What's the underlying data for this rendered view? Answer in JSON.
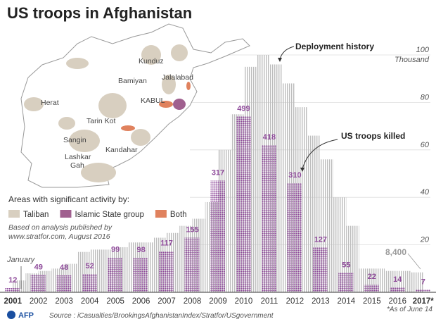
{
  "chart_data": {
    "type": "bar",
    "title": "US troops in Afghanistan",
    "categories": [
      "2001",
      "2002",
      "2003",
      "2004",
      "2005",
      "2006",
      "2007",
      "2008",
      "2009",
      "2010",
      "2011",
      "2012",
      "2013",
      "2014",
      "2015",
      "2016",
      "2017*"
    ],
    "series": [
      {
        "name": "US troops killed",
        "color": "#8e4a9a",
        "values": [
          12,
          49,
          48,
          52,
          99,
          98,
          117,
          155,
          317,
          499,
          418,
          310,
          127,
          55,
          22,
          14,
          7
        ]
      }
    ],
    "deployment": {
      "name": "Deployment history",
      "color": "#bdbdbd",
      "xlim": [
        2001,
        2018
      ],
      "x": [
        2001.5,
        2002,
        2002.5,
        2003,
        2003.5,
        2004,
        2004.5,
        2005,
        2005.5,
        2006,
        2006.5,
        2007,
        2007.5,
        2008,
        2008.5,
        2009,
        2009.5,
        2010,
        2010.5,
        2011,
        2011.5,
        2012,
        2012.5,
        2013,
        2013.5,
        2014,
        2014.5,
        2015,
        2015.5,
        2016,
        2016.5,
        2017
      ],
      "values": [
        5,
        8,
        9,
        10,
        12,
        17,
        18,
        18,
        19,
        21,
        21,
        23,
        25,
        28,
        31,
        38,
        60,
        75,
        95,
        100,
        96,
        88,
        78,
        66,
        56,
        40,
        28,
        10,
        10,
        9,
        9,
        8.4
      ]
    },
    "y2lim": [
      0,
      100
    ],
    "y2ticks": [
      20,
      40,
      60,
      80,
      100
    ],
    "y2_unit": "Thousand",
    "grid": true,
    "annotations": {
      "first": "January",
      "last": "8,400",
      "footnote": "*As of June 14"
    },
    "map": {
      "cities": [
        "Kunduz",
        "Bamiyan",
        "Jalalabad",
        "Herat",
        "KABUL",
        "Tarin Kot",
        "Sangin",
        "Kandahar",
        "Lashkar",
        "Gah"
      ],
      "legend_title": "Areas with significant activity by:",
      "legend": [
        {
          "name": "Taliban",
          "color": "#d8cfc0"
        },
        {
          "name": "Islamic State group",
          "color": "#a0608f"
        },
        {
          "name": "Both",
          "color": "#e0825e"
        }
      ],
      "note": [
        "Based on analysis published by",
        "www.stratfor.com, August 2016"
      ]
    },
    "footer": {
      "agency": "AFP",
      "source": "Source : iCasualties/BrookingsAfghanistanIndex/Stratfor/USgovernment"
    }
  }
}
